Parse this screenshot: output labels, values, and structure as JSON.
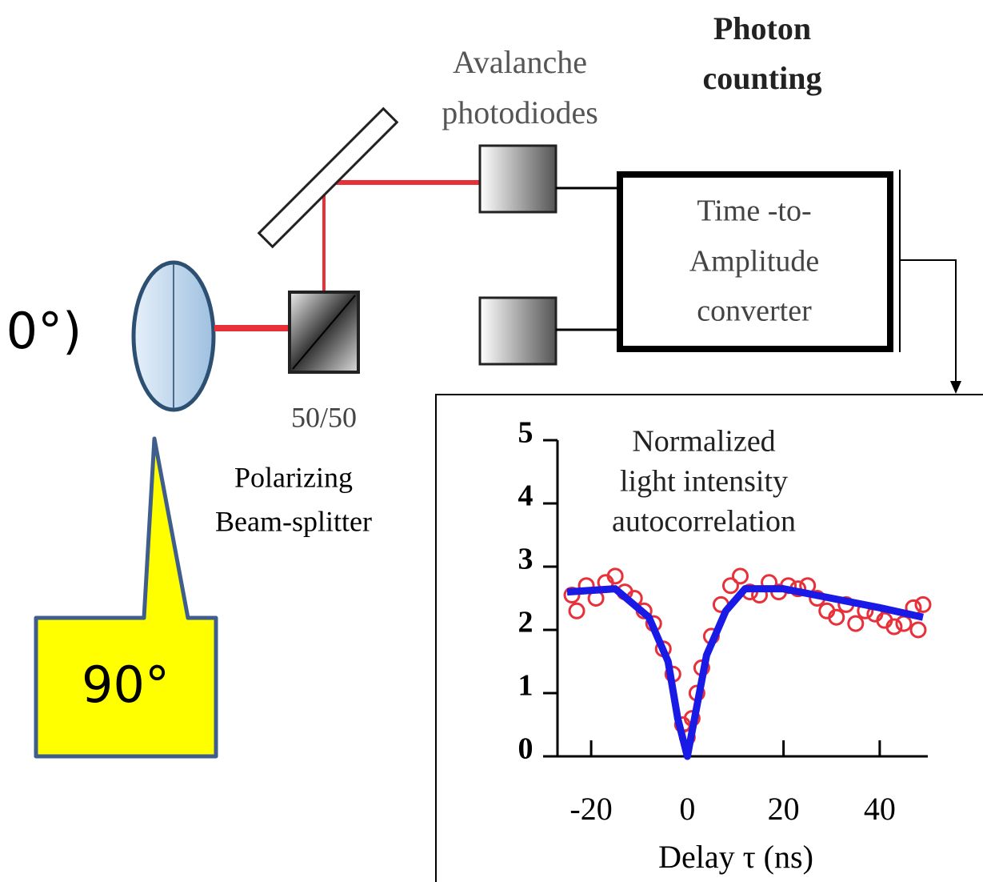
{
  "labels": {
    "left_angle": "0°)",
    "callout": "90°",
    "splitter_ratio": "50/50",
    "splitter_name": [
      "Polarizing",
      "Beam-splitter"
    ],
    "detectors": [
      "Avalanche",
      "photodiodes"
    ],
    "counting": [
      "Photon",
      "counting"
    ],
    "converter": [
      "Time -to-",
      "Amplitude",
      "converter"
    ]
  },
  "chart_data": {
    "type": "line",
    "title": [
      "Normalized",
      "light intensity",
      "autocorrelation"
    ],
    "xlabel": "Delay τ (ns)",
    "xlim": [
      -27,
      50
    ],
    "ylim": [
      0,
      5
    ],
    "xticks": [
      -20,
      0,
      20,
      40
    ],
    "yticks": [
      0,
      1,
      2,
      3,
      4,
      5
    ],
    "series": [
      {
        "type": "scatter",
        "color": "#e8303a",
        "x": [
          -24,
          -23,
          -21,
          -19,
          -17,
          -15,
          -13,
          -11,
          -9,
          -7,
          -5,
          -3,
          -1,
          0,
          1,
          2,
          3,
          5,
          7,
          9,
          11,
          13,
          15,
          17,
          19,
          21,
          23,
          25,
          27,
          29,
          31,
          33,
          35,
          37,
          39,
          41,
          43,
          45,
          47,
          48,
          49
        ],
        "values": [
          2.55,
          2.3,
          2.7,
          2.5,
          2.75,
          2.85,
          2.6,
          2.5,
          2.3,
          2.1,
          1.7,
          1.3,
          0.5,
          0.3,
          0.6,
          1.0,
          1.4,
          1.9,
          2.4,
          2.7,
          2.85,
          2.6,
          2.55,
          2.75,
          2.6,
          2.7,
          2.65,
          2.7,
          2.5,
          2.3,
          2.2,
          2.4,
          2.1,
          2.3,
          2.25,
          2.15,
          2.05,
          2.1,
          2.35,
          2.0,
          2.4
        ]
      },
      {
        "type": "line",
        "color": "#1a1ae6",
        "x": [
          -25,
          -15,
          -8,
          -4,
          -2,
          0,
          2,
          4,
          8,
          12,
          20,
          30,
          40,
          49
        ],
        "values": [
          2.6,
          2.65,
          2.2,
          1.5,
          0.6,
          0,
          0.8,
          1.6,
          2.3,
          2.65,
          2.65,
          2.5,
          2.35,
          2.2
        ]
      }
    ]
  }
}
